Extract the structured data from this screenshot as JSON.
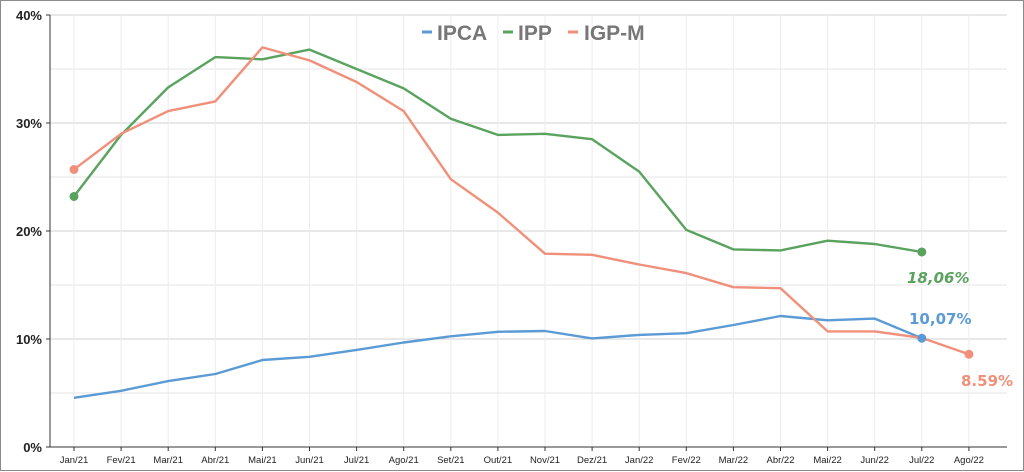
{
  "chart_data": {
    "type": "line",
    "categories": [
      "Jan/21",
      "Fev/21",
      "Mar/21",
      "Abr/21",
      "Mai/21",
      "Jun/21",
      "Jul/21",
      "Ago/21",
      "Set/21",
      "Out/21",
      "Nov/21",
      "Dez/21",
      "Jan/22",
      "Fev/22",
      "Mar/22",
      "Abr/22",
      "Mai/22",
      "Jun/22",
      "Jul/22",
      "Ago/22"
    ],
    "y_ticks": [
      "0%",
      "10%",
      "20%",
      "30%",
      "40%"
    ],
    "ylim": [
      0,
      40
    ],
    "grid": true,
    "legend_position": "top-center",
    "series": [
      {
        "name": "IPCA",
        "color": "#5b9bd5",
        "values": [
          4.56,
          5.2,
          6.1,
          6.76,
          8.06,
          8.35,
          8.99,
          9.68,
          10.25,
          10.67,
          10.74,
          10.06,
          10.38,
          10.54,
          11.3,
          12.13,
          11.73,
          11.89,
          10.07,
          null
        ],
        "end_label": "10,07%"
      },
      {
        "name": "IPP",
        "color": "#5aa35e",
        "values": [
          23.2,
          28.9,
          33.3,
          36.1,
          35.9,
          36.8,
          35.0,
          33.2,
          30.4,
          28.9,
          29.0,
          28.5,
          25.5,
          20.1,
          18.3,
          18.2,
          19.1,
          18.8,
          18.06,
          null
        ],
        "end_label": "18,06%"
      },
      {
        "name": "IGP-M",
        "color": "#f0907a",
        "values": [
          25.7,
          29.0,
          31.1,
          32.0,
          37.0,
          35.8,
          33.8,
          31.1,
          24.8,
          21.7,
          17.9,
          17.8,
          16.9,
          16.1,
          14.8,
          14.7,
          10.7,
          10.7,
          10.1,
          8.59
        ],
        "end_label": "8.59%"
      }
    ]
  }
}
